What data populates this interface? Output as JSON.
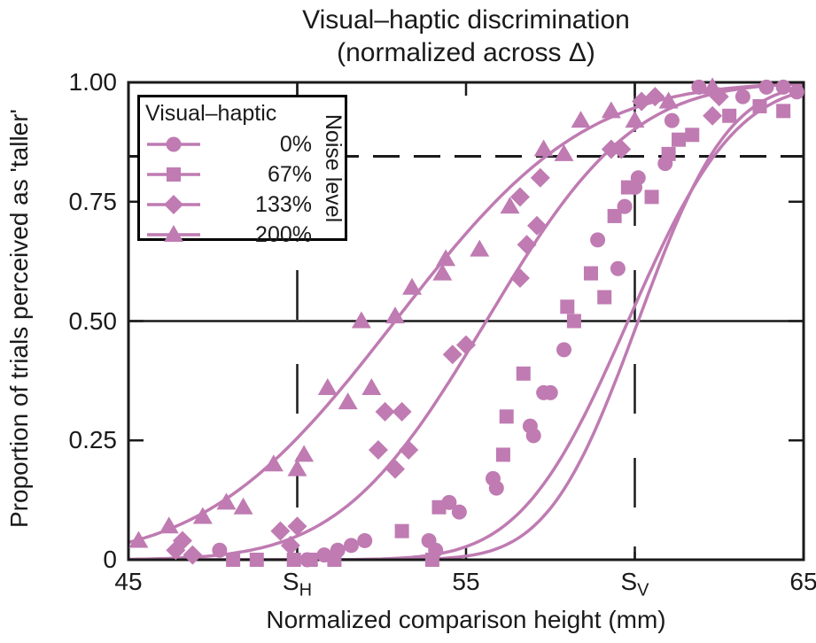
{
  "title": {
    "line1": "Visual–haptic discrimination",
    "line2": "(normalized across Δ)"
  },
  "chart_data": {
    "type": "line",
    "subtype": "psychometric curves with scatter points",
    "title": "Visual–haptic discrimination (normalized across Δ)",
    "xlabel": "Normalized comparison height (mm)",
    "ylabel": "Proportion of trials perceived as 'taller'",
    "xlim": [
      45,
      65
    ],
    "ylim": [
      0,
      1
    ],
    "grid": false,
    "x_ticks": [
      {
        "value": 45,
        "label": "45"
      },
      {
        "value": 50,
        "label": "SH",
        "base": "S",
        "sub": "H"
      },
      {
        "value": 55,
        "label": "55"
      },
      {
        "value": 60,
        "label": "SV",
        "base": "S",
        "sub": "V"
      },
      {
        "value": 65,
        "label": "65"
      }
    ],
    "y_ticks": [
      {
        "value": 0,
        "label": "0"
      },
      {
        "value": 0.25,
        "label": "0.25"
      },
      {
        "value": 0.5,
        "label": "0.50"
      },
      {
        "value": 0.75,
        "label": "0.75"
      },
      {
        "value": 1,
        "label": "1.00"
      }
    ],
    "reference_lines": [
      {
        "orientation": "horizontal",
        "value": 0.5,
        "style": "solid",
        "meaning": "50% point (PSE level)"
      },
      {
        "orientation": "horizontal",
        "value": 0.845,
        "style": "dashed",
        "meaning": "84% discrimination threshold level"
      },
      {
        "orientation": "vertical",
        "value": 50,
        "style": "dashed",
        "meaning": "standard haptic height SH"
      },
      {
        "orientation": "vertical",
        "value": 60,
        "style": "dashed",
        "meaning": "standard visual height SV"
      }
    ],
    "legend": {
      "title": "Visual–haptic",
      "side_label": "Noise level",
      "position": "top-left"
    },
    "colors": {
      "series": "#BF7BB2",
      "axis": "#1a1a1a",
      "background": "#ffffff"
    },
    "series": [
      {
        "name": "0%",
        "marker": "circle",
        "curve": {
          "model": "cumulative-gaussian",
          "mu": 60.1,
          "sigma": 2.1
        },
        "points": [
          [
            47.7,
            0.02
          ],
          [
            50.3,
            0.0
          ],
          [
            50.8,
            0.01
          ],
          [
            51.2,
            0.02
          ],
          [
            51.6,
            0.03
          ],
          [
            52.0,
            0.04
          ],
          [
            53.9,
            0.04
          ],
          [
            54.1,
            0.02
          ],
          [
            54.5,
            0.12
          ],
          [
            54.8,
            0.1
          ],
          [
            55.8,
            0.17
          ],
          [
            55.9,
            0.15
          ],
          [
            56.9,
            0.28
          ],
          [
            57.0,
            0.26
          ],
          [
            57.3,
            0.35
          ],
          [
            57.5,
            0.35
          ],
          [
            57.9,
            0.44
          ],
          [
            58.9,
            0.67
          ],
          [
            59.5,
            0.61
          ],
          [
            59.7,
            0.74
          ],
          [
            60.0,
            0.78
          ],
          [
            60.1,
            0.8
          ],
          [
            60.9,
            0.83
          ],
          [
            61.1,
            0.92
          ],
          [
            61.9,
            0.99
          ],
          [
            63.2,
            0.97
          ],
          [
            63.9,
            0.99
          ],
          [
            64.4,
            0.99
          ],
          [
            64.8,
            0.98
          ]
        ]
      },
      {
        "name": "67%",
        "marker": "square",
        "curve": {
          "model": "cumulative-gaussian",
          "mu": 59.8,
          "sigma": 2.5
        },
        "points": [
          [
            48.1,
            0.0
          ],
          [
            48.8,
            0.0
          ],
          [
            49.9,
            0.0
          ],
          [
            50.4,
            0.0
          ],
          [
            51.1,
            0.0
          ],
          [
            53.1,
            0.06
          ],
          [
            54.0,
            0.0
          ],
          [
            54.2,
            0.11
          ],
          [
            56.1,
            0.22
          ],
          [
            56.2,
            0.3
          ],
          [
            56.7,
            0.39
          ],
          [
            58.0,
            0.53
          ],
          [
            58.2,
            0.5
          ],
          [
            58.7,
            0.6
          ],
          [
            59.1,
            0.55
          ],
          [
            59.4,
            0.72
          ],
          [
            59.8,
            0.78
          ],
          [
            60.5,
            0.76
          ],
          [
            61.0,
            0.85
          ],
          [
            61.3,
            0.88
          ],
          [
            61.7,
            0.89
          ],
          [
            62.8,
            0.93
          ],
          [
            63.7,
            0.95
          ],
          [
            64.4,
            0.94
          ]
        ]
      },
      {
        "name": "133%",
        "marker": "diamond",
        "curve": {
          "model": "cumulative-gaussian",
          "mu": 55.6,
          "sigma": 3.4
        },
        "points": [
          [
            46.4,
            0.02
          ],
          [
            46.6,
            0.04
          ],
          [
            46.9,
            0.01
          ],
          [
            49.5,
            0.06
          ],
          [
            49.8,
            0.03
          ],
          [
            50.0,
            0.07
          ],
          [
            52.4,
            0.23
          ],
          [
            52.6,
            0.31
          ],
          [
            52.9,
            0.19
          ],
          [
            53.1,
            0.31
          ],
          [
            53.3,
            0.23
          ],
          [
            54.6,
            0.43
          ],
          [
            55.0,
            0.45
          ],
          [
            56.6,
            0.59
          ],
          [
            56.6,
            0.76
          ],
          [
            56.8,
            0.66
          ],
          [
            57.1,
            0.7
          ],
          [
            57.2,
            0.8
          ],
          [
            59.3,
            0.86
          ],
          [
            59.6,
            0.86
          ],
          [
            60.2,
            0.96
          ],
          [
            60.6,
            0.97
          ],
          [
            62.3,
            0.93
          ],
          [
            62.5,
            0.97
          ]
        ]
      },
      {
        "name": "200%",
        "marker": "triangle",
        "curve": {
          "model": "cumulative-gaussian",
          "mu": 52.9,
          "sigma": 4.4
        },
        "points": [
          [
            45.3,
            0.04
          ],
          [
            46.2,
            0.07
          ],
          [
            47.2,
            0.09
          ],
          [
            47.9,
            0.12
          ],
          [
            48.4,
            0.11
          ],
          [
            49.3,
            0.2
          ],
          [
            50.0,
            0.19
          ],
          [
            50.2,
            0.22
          ],
          [
            50.9,
            0.36
          ],
          [
            51.5,
            0.33
          ],
          [
            51.9,
            0.5
          ],
          [
            52.2,
            0.36
          ],
          [
            52.9,
            0.51
          ],
          [
            53.4,
            0.57
          ],
          [
            54.3,
            0.6
          ],
          [
            54.4,
            0.63
          ],
          [
            55.4,
            0.65
          ],
          [
            56.3,
            0.74
          ],
          [
            57.3,
            0.86
          ],
          [
            57.9,
            0.85
          ],
          [
            58.4,
            0.92
          ],
          [
            59.3,
            0.94
          ],
          [
            60.0,
            0.92
          ],
          [
            61.0,
            0.96
          ],
          [
            62.3,
            0.99
          ]
        ]
      }
    ]
  }
}
